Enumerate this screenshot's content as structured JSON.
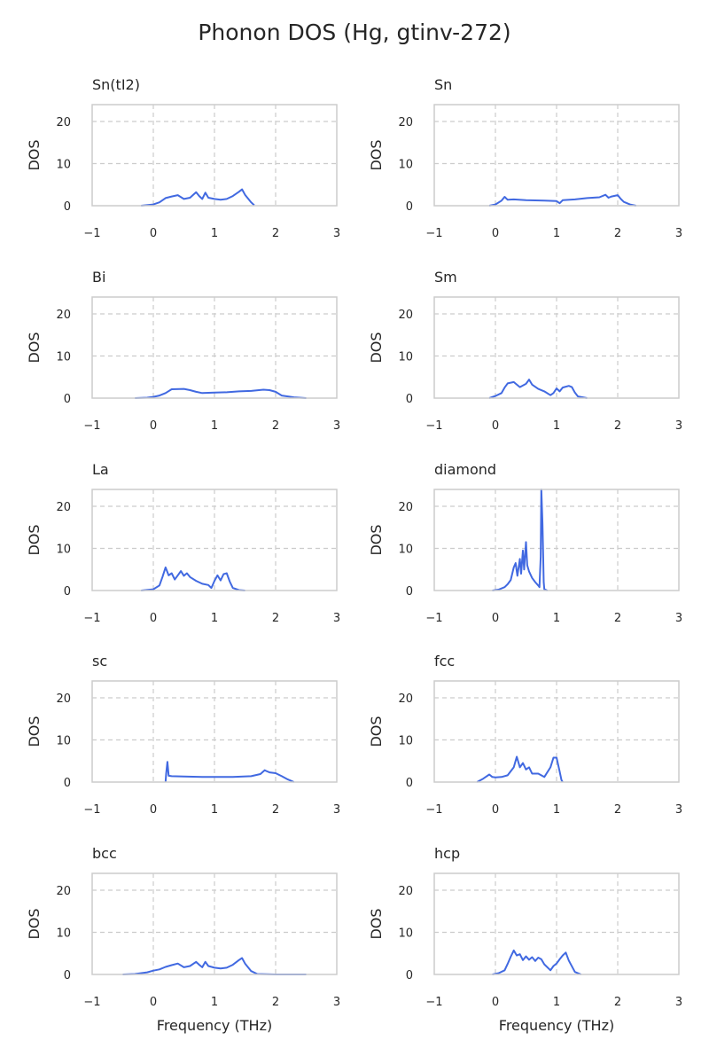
{
  "figure": {
    "title": "Phonon DOS (Hg, gtinv-272)"
  },
  "style": {
    "line_color": "#4169e1",
    "grid_color": "#cccccc",
    "frame_color": "#cccccc"
  },
  "chart_data": [
    {
      "type": "line",
      "title": "Sn(tI2)",
      "xlabel": "",
      "ylabel": "DOS",
      "xlim": [
        -1,
        3
      ],
      "ylim": [
        0,
        24
      ],
      "xticks": [
        -1,
        0,
        1,
        2,
        3
      ],
      "xtick_labels": [
        "−1",
        "0",
        "1",
        "2",
        "3"
      ],
      "yticks": [
        0,
        10,
        20
      ],
      "ytick_labels": [
        "0",
        "10",
        "20"
      ],
      "grid": true,
      "x": [
        -0.2,
        0.0,
        0.1,
        0.2,
        0.3,
        0.4,
        0.5,
        0.6,
        0.7,
        0.75,
        0.8,
        0.85,
        0.9,
        1.0,
        1.1,
        1.2,
        1.3,
        1.4,
        1.45,
        1.5,
        1.6,
        1.65
      ],
      "y": [
        0,
        0.3,
        0.8,
        1.8,
        2.2,
        2.5,
        1.6,
        1.9,
        3.2,
        2.3,
        1.6,
        3.1,
        1.9,
        1.6,
        1.4,
        1.6,
        2.3,
        3.3,
        3.9,
        2.6,
        0.8,
        0.1
      ]
    },
    {
      "type": "line",
      "title": "Sn",
      "xlabel": "",
      "ylabel": "DOS",
      "xlim": [
        -1,
        3
      ],
      "ylim": [
        0,
        24
      ],
      "xticks": [
        -1,
        0,
        1,
        2,
        3
      ],
      "xtick_labels": [
        "−1",
        "0",
        "1",
        "2",
        "3"
      ],
      "yticks": [
        0,
        10,
        20
      ],
      "ytick_labels": [
        "0",
        "10",
        "20"
      ],
      "grid": true,
      "x": [
        -0.1,
        0.0,
        0.1,
        0.15,
        0.2,
        0.3,
        0.5,
        0.8,
        1.0,
        1.05,
        1.1,
        1.3,
        1.5,
        1.7,
        1.8,
        1.85,
        1.9,
        2.0,
        2.05,
        2.1,
        2.2,
        2.3
      ],
      "y": [
        0,
        0.3,
        1.2,
        2.1,
        1.4,
        1.5,
        1.3,
        1.2,
        1.1,
        0.6,
        1.3,
        1.5,
        1.8,
        2.0,
        2.6,
        1.9,
        2.2,
        2.5,
        1.6,
        0.9,
        0.3,
        0
      ]
    },
    {
      "type": "line",
      "title": "Bi",
      "xlabel": "",
      "ylabel": "DOS",
      "xlim": [
        -1,
        3
      ],
      "ylim": [
        0,
        24
      ],
      "xticks": [
        -1,
        0,
        1,
        2,
        3
      ],
      "xtick_labels": [
        "−1",
        "0",
        "1",
        "2",
        "3"
      ],
      "yticks": [
        0,
        10,
        20
      ],
      "ytick_labels": [
        "0",
        "10",
        "20"
      ],
      "grid": true,
      "x": [
        -0.3,
        -0.1,
        0.0,
        0.1,
        0.2,
        0.3,
        0.5,
        0.6,
        0.7,
        0.8,
        1.0,
        1.2,
        1.4,
        1.6,
        1.8,
        1.9,
        2.0,
        2.1,
        2.3,
        2.5
      ],
      "y": [
        0,
        0.1,
        0.3,
        0.6,
        1.2,
        2.1,
        2.2,
        1.9,
        1.5,
        1.2,
        1.3,
        1.4,
        1.6,
        1.7,
        2.0,
        1.9,
        1.5,
        0.6,
        0.2,
        0
      ]
    },
    {
      "type": "line",
      "title": "Sm",
      "xlabel": "",
      "ylabel": "DOS",
      "xlim": [
        -1,
        3
      ],
      "ylim": [
        0,
        24
      ],
      "xticks": [
        -1,
        0,
        1,
        2,
        3
      ],
      "xtick_labels": [
        "−1",
        "0",
        "1",
        "2",
        "3"
      ],
      "yticks": [
        0,
        10,
        20
      ],
      "ytick_labels": [
        "0",
        "10",
        "20"
      ],
      "grid": true,
      "x": [
        -0.1,
        0.0,
        0.1,
        0.15,
        0.2,
        0.3,
        0.4,
        0.5,
        0.55,
        0.6,
        0.7,
        0.8,
        0.9,
        0.95,
        1.0,
        1.05,
        1.1,
        1.2,
        1.25,
        1.3,
        1.35,
        1.5
      ],
      "y": [
        0,
        0.5,
        1.2,
        2.5,
        3.5,
        3.8,
        2.6,
        3.4,
        4.4,
        3.2,
        2.2,
        1.6,
        0.7,
        1.2,
        2.3,
        1.6,
        2.5,
        2.9,
        2.6,
        1.3,
        0.4,
        0
      ]
    },
    {
      "type": "line",
      "title": "La",
      "xlabel": "",
      "ylabel": "DOS",
      "xlim": [
        -1,
        3
      ],
      "ylim": [
        0,
        24
      ],
      "xticks": [
        -1,
        0,
        1,
        2,
        3
      ],
      "xtick_labels": [
        "−1",
        "0",
        "1",
        "2",
        "3"
      ],
      "yticks": [
        0,
        10,
        20
      ],
      "ytick_labels": [
        "0",
        "10",
        "20"
      ],
      "grid": true,
      "x": [
        -0.2,
        0.0,
        0.1,
        0.15,
        0.2,
        0.25,
        0.3,
        0.35,
        0.4,
        0.45,
        0.5,
        0.55,
        0.6,
        0.7,
        0.8,
        0.9,
        0.95,
        1.0,
        1.05,
        1.1,
        1.15,
        1.2,
        1.25,
        1.3,
        1.4,
        1.5
      ],
      "y": [
        0,
        0.3,
        1.2,
        3.2,
        5.5,
        3.6,
        4.1,
        2.6,
        3.6,
        4.6,
        3.5,
        4.1,
        3.2,
        2.3,
        1.6,
        1.3,
        0.6,
        2.3,
        3.6,
        2.4,
        3.9,
        4.1,
        2.1,
        0.6,
        0.1,
        0
      ]
    },
    {
      "type": "line",
      "title": "diamond",
      "xlabel": "",
      "ylabel": "DOS",
      "xlim": [
        -1,
        3
      ],
      "ylim": [
        0,
        24
      ],
      "xticks": [
        -1,
        0,
        1,
        2,
        3
      ],
      "xtick_labels": [
        "−1",
        "0",
        "1",
        "2",
        "3"
      ],
      "yticks": [
        0,
        10,
        20
      ],
      "ytick_labels": [
        "0",
        "10",
        "20"
      ],
      "grid": true,
      "x": [
        -0.05,
        0.05,
        0.15,
        0.2,
        0.25,
        0.3,
        0.33,
        0.36,
        0.4,
        0.42,
        0.45,
        0.47,
        0.5,
        0.52,
        0.55,
        0.6,
        0.65,
        0.7,
        0.72,
        0.74,
        0.75,
        0.77,
        0.79,
        0.8,
        0.85
      ],
      "y": [
        0,
        0.2,
        0.8,
        1.5,
        2.5,
        5.5,
        6.5,
        3.5,
        7.5,
        4.0,
        9.5,
        5.0,
        11.5,
        6.0,
        4.5,
        3.0,
        2.0,
        1.2,
        0.8,
        8.0,
        24.0,
        16.0,
        2.0,
        0.3,
        0
      ]
    },
    {
      "type": "line",
      "title": "sc",
      "xlabel": "",
      "ylabel": "DOS",
      "xlim": [
        -1,
        3
      ],
      "ylim": [
        0,
        24
      ],
      "xticks": [
        -1,
        0,
        1,
        2,
        3
      ],
      "xtick_labels": [
        "−1",
        "0",
        "1",
        "2",
        "3"
      ],
      "yticks": [
        0,
        10,
        20
      ],
      "ytick_labels": [
        "0",
        "10",
        "20"
      ],
      "grid": true,
      "x": [
        0.2,
        0.21,
        0.23,
        0.25,
        0.3,
        0.5,
        0.8,
        1.0,
        1.3,
        1.6,
        1.75,
        1.82,
        1.85,
        1.9,
        2.0,
        2.1,
        2.2,
        2.3
      ],
      "y": [
        0,
        2.0,
        4.8,
        1.5,
        1.4,
        1.3,
        1.2,
        1.2,
        1.2,
        1.4,
        1.9,
        2.8,
        2.6,
        2.3,
        2.1,
        1.4,
        0.6,
        0
      ]
    },
    {
      "type": "line",
      "title": "fcc",
      "xlabel": "",
      "ylabel": "DOS",
      "xlim": [
        -1,
        3
      ],
      "ylim": [
        0,
        24
      ],
      "xticks": [
        -1,
        0,
        1,
        2,
        3
      ],
      "xtick_labels": [
        "−1",
        "0",
        "1",
        "2",
        "3"
      ],
      "yticks": [
        0,
        10,
        20
      ],
      "ytick_labels": [
        "0",
        "10",
        "20"
      ],
      "grid": true,
      "x": [
        -0.3,
        -0.2,
        -0.1,
        -0.05,
        0.0,
        0.1,
        0.2,
        0.3,
        0.35,
        0.4,
        0.45,
        0.5,
        0.55,
        0.6,
        0.7,
        0.8,
        0.9,
        0.95,
        1.0,
        1.05,
        1.08,
        1.1
      ],
      "y": [
        0,
        0.8,
        1.8,
        1.2,
        1.1,
        1.2,
        1.6,
        3.5,
        6.0,
        3.5,
        4.5,
        3.0,
        3.5,
        2.0,
        2.0,
        1.2,
        3.5,
        5.8,
        5.8,
        2.5,
        0.5,
        0
      ]
    },
    {
      "type": "line",
      "title": "bcc",
      "xlabel": "Frequency (THz)",
      "ylabel": "DOS",
      "xlim": [
        -1,
        3
      ],
      "ylim": [
        0,
        24
      ],
      "xticks": [
        -1,
        0,
        1,
        2,
        3
      ],
      "xtick_labels": [
        "−1",
        "0",
        "1",
        "2",
        "3"
      ],
      "yticks": [
        0,
        10,
        20
      ],
      "ytick_labels": [
        "0",
        "10",
        "20"
      ],
      "grid": true,
      "x": [
        -0.5,
        -0.3,
        -0.1,
        0.0,
        0.1,
        0.2,
        0.3,
        0.4,
        0.5,
        0.6,
        0.7,
        0.75,
        0.8,
        0.85,
        0.9,
        1.0,
        1.1,
        1.2,
        1.3,
        1.4,
        1.45,
        1.5,
        1.6,
        1.7,
        2.0,
        2.5
      ],
      "y": [
        0,
        0.1,
        0.5,
        0.9,
        1.2,
        1.8,
        2.2,
        2.6,
        1.7,
        2.0,
        3.0,
        2.3,
        1.7,
        3.0,
        2.0,
        1.6,
        1.4,
        1.6,
        2.3,
        3.4,
        3.9,
        2.6,
        0.8,
        0.1,
        0,
        0
      ]
    },
    {
      "type": "line",
      "title": "hcp",
      "xlabel": "Frequency (THz)",
      "ylabel": "DOS",
      "xlim": [
        -1,
        3
      ],
      "ylim": [
        0,
        24
      ],
      "xticks": [
        -1,
        0,
        1,
        2,
        3
      ],
      "xtick_labels": [
        "−1",
        "0",
        "1",
        "2",
        "3"
      ],
      "yticks": [
        0,
        10,
        20
      ],
      "ytick_labels": [
        "0",
        "10",
        "20"
      ],
      "grid": true,
      "x": [
        -0.05,
        0.05,
        0.15,
        0.2,
        0.25,
        0.3,
        0.35,
        0.4,
        0.45,
        0.5,
        0.55,
        0.6,
        0.65,
        0.7,
        0.75,
        0.8,
        0.9,
        0.95,
        1.0,
        1.05,
        1.1,
        1.15,
        1.2,
        1.3,
        1.4
      ],
      "y": [
        0,
        0.3,
        1.0,
        2.5,
        4.2,
        5.7,
        4.5,
        4.8,
        3.4,
        4.3,
        3.5,
        4.1,
        3.2,
        4.0,
        3.6,
        2.4,
        1.0,
        2.0,
        2.6,
        3.6,
        4.5,
        5.2,
        3.3,
        0.6,
        0
      ]
    }
  ]
}
